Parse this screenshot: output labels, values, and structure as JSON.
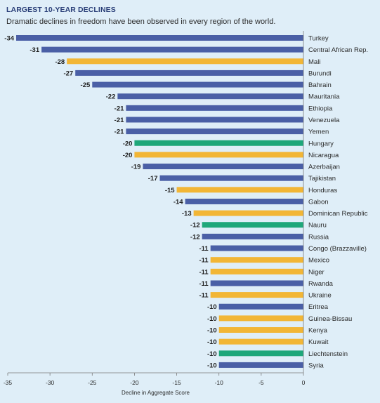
{
  "title": "LARGEST 10-YEAR DECLINES",
  "subtitle": "Dramatic declines in freedom have been observed in every region of the world.",
  "colors": {
    "background": "#dfeef8",
    "blue": "#4a5fa6",
    "yellow": "#f2b636",
    "green": "#1ea77a"
  },
  "chart_data": {
    "type": "bar",
    "orientation": "horizontal",
    "title": "LARGEST 10-YEAR DECLINES",
    "subtitle": "Dramatic declines in freedom have been observed in every region of the world.",
    "xlabel": "Decline in Aggregate Score",
    "ylabel": "",
    "xlim": [
      -35,
      0
    ],
    "xticks": [
      -35,
      -30,
      -25,
      -20,
      -15,
      -10,
      -5,
      0
    ],
    "grid": false,
    "legend": "none",
    "categories": [
      "Turkey",
      "Central African Rep.",
      "Mali",
      "Burundi",
      "Bahrain",
      "Mauritania",
      "Ethiopia",
      "Venezuela",
      "Yemen",
      "Hungary",
      "Nicaragua",
      "Azerbaijan",
      "Tajikistan",
      "Honduras",
      "Gabon",
      "Dominican Republic",
      "Nauru",
      "Russia",
      "Congo (Brazzaville)",
      "Mexico",
      "Niger",
      "Rwanda",
      "Ukraine",
      "Eritrea",
      "Guinea-Bissau",
      "Kenya",
      "Kuwait",
      "Liechtenstein",
      "Syria"
    ],
    "values": [
      -34,
      -31,
      -28,
      -27,
      -25,
      -22,
      -21,
      -21,
      -21,
      -20,
      -20,
      -19,
      -17,
      -15,
      -14,
      -13,
      -12,
      -12,
      -11,
      -11,
      -11,
      -11,
      -11,
      -10,
      -10,
      -10,
      -10,
      -10,
      -10
    ],
    "bar_colors": [
      "blue",
      "blue",
      "yellow",
      "blue",
      "blue",
      "blue",
      "blue",
      "blue",
      "blue",
      "green",
      "yellow",
      "blue",
      "blue",
      "yellow",
      "blue",
      "yellow",
      "green",
      "blue",
      "blue",
      "yellow",
      "yellow",
      "blue",
      "yellow",
      "blue",
      "yellow",
      "yellow",
      "yellow",
      "green",
      "blue"
    ]
  }
}
